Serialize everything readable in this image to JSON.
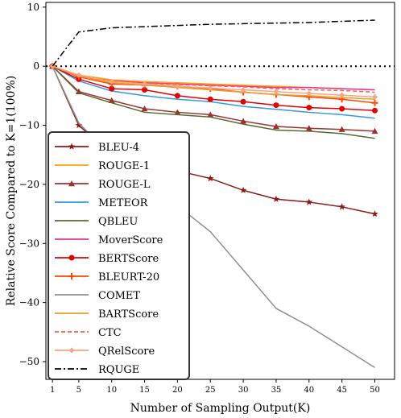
{
  "chart_data": {
    "type": "line",
    "xlabel": "Number of Sampling Output(K)",
    "ylabel": "Relative Score Compared to K=1(100%)",
    "x": [
      1,
      5,
      10,
      15,
      20,
      25,
      30,
      35,
      40,
      45,
      50
    ],
    "x_tick_labels": [
      "1",
      "5",
      "10",
      "15",
      "20",
      "25",
      "30",
      "35",
      "40",
      "45",
      "50"
    ],
    "xlim": [
      0,
      53
    ],
    "ylim": [
      -53,
      10.8
    ],
    "y_ticks": [
      10,
      0,
      -10,
      -20,
      -30,
      -40,
      -50
    ],
    "y_tick_labels": [
      "10",
      "0",
      "−10",
      "−20",
      "−30",
      "−40",
      "−50"
    ],
    "reference_line": {
      "y": 0,
      "style": "dotted",
      "color": "#000000"
    },
    "legend_position": "lower-left",
    "series": [
      {
        "name": "BLEU-4",
        "color": "#8b1a1a",
        "style": "solid",
        "marker": "star",
        "values": [
          0,
          -10,
          -15,
          -16.5,
          -17.7,
          -19,
          -21,
          -22.5,
          -23,
          -23.8,
          -25
        ]
      },
      {
        "name": "ROUGE-1",
        "color": "#ffa500",
        "style": "solid",
        "marker": "none",
        "values": [
          0,
          -1.5,
          -2.3,
          -2.6,
          -2.8,
          -3.0,
          -3.2,
          -3.4,
          -3.6,
          -3.8,
          -4.0
        ]
      },
      {
        "name": "ROUGE-L",
        "color": "#a0302f",
        "style": "solid",
        "marker": "triangle",
        "values": [
          0,
          -4.3,
          -5.8,
          -7.2,
          -7.8,
          -8.2,
          -9.3,
          -10.2,
          -10.5,
          -10.7,
          -11
        ]
      },
      {
        "name": "METEOR",
        "color": "#3399e6",
        "style": "solid",
        "marker": "none",
        "values": [
          0,
          -2.5,
          -4.2,
          -5.0,
          -5.6,
          -6.0,
          -6.8,
          -7.3,
          -7.8,
          -8.2,
          -8.8
        ]
      },
      {
        "name": "QBLEU",
        "color": "#556b2f",
        "style": "solid",
        "marker": "none",
        "values": [
          0,
          -4.5,
          -6.2,
          -7.8,
          -8.2,
          -8.6,
          -9.8,
          -10.8,
          -11.0,
          -11.4,
          -12.2
        ]
      },
      {
        "name": "MoverScore",
        "color": "#e63399",
        "style": "solid",
        "marker": "none",
        "values": [
          0,
          -1.6,
          -2.5,
          -2.8,
          -3.0,
          -3.2,
          -3.4,
          -3.6,
          -3.6,
          -3.8,
          -4.0
        ]
      },
      {
        "name": "BERTScore",
        "color": "#e60000",
        "style": "solid",
        "marker": "circle",
        "values": [
          0,
          -2.2,
          -3.8,
          -4.0,
          -5.0,
          -5.6,
          -6.0,
          -6.6,
          -7.0,
          -7.2,
          -7.5
        ]
      },
      {
        "name": "BLEURT-20",
        "color": "#ff4500",
        "style": "solid",
        "marker": "plus",
        "values": [
          0,
          -1.8,
          -3.0,
          -3.2,
          -3.4,
          -3.8,
          -4.4,
          -4.8,
          -5.2,
          -5.6,
          -6.2
        ]
      },
      {
        "name": "COMET",
        "color": "#909090",
        "style": "solid",
        "marker": "none",
        "values": [
          0,
          -9.6,
          -15.3,
          -19,
          -23.6,
          -28,
          -34.5,
          -41,
          -44,
          -47.5,
          -51
        ]
      },
      {
        "name": "BARTScore",
        "color": "#e69f2e",
        "style": "solid",
        "marker": "none",
        "values": [
          0,
          -1.7,
          -2.8,
          -3.2,
          -3.6,
          -4.0,
          -4.4,
          -4.8,
          -5.0,
          -5.3,
          -5.6
        ]
      },
      {
        "name": "CTC",
        "color": "#ff5c4d",
        "style": "dashed",
        "marker": "none",
        "values": [
          0,
          -1.6,
          -2.6,
          -2.9,
          -3.1,
          -3.3,
          -3.5,
          -3.8,
          -4.0,
          -4.1,
          -4.4
        ]
      },
      {
        "name": "QRelScore",
        "color": "#f4a582",
        "style": "solid",
        "marker": "diamond",
        "values": [
          0,
          -1.5,
          -2.6,
          -3.0,
          -3.4,
          -3.7,
          -4.0,
          -4.3,
          -4.6,
          -4.9,
          -5.2
        ]
      },
      {
        "name": "RQUGE",
        "color": "#000000",
        "style": "dashdot",
        "marker": "none",
        "values": [
          0,
          5.8,
          6.5,
          6.7,
          6.9,
          7.1,
          7.2,
          7.3,
          7.4,
          7.6,
          7.8
        ]
      }
    ]
  }
}
